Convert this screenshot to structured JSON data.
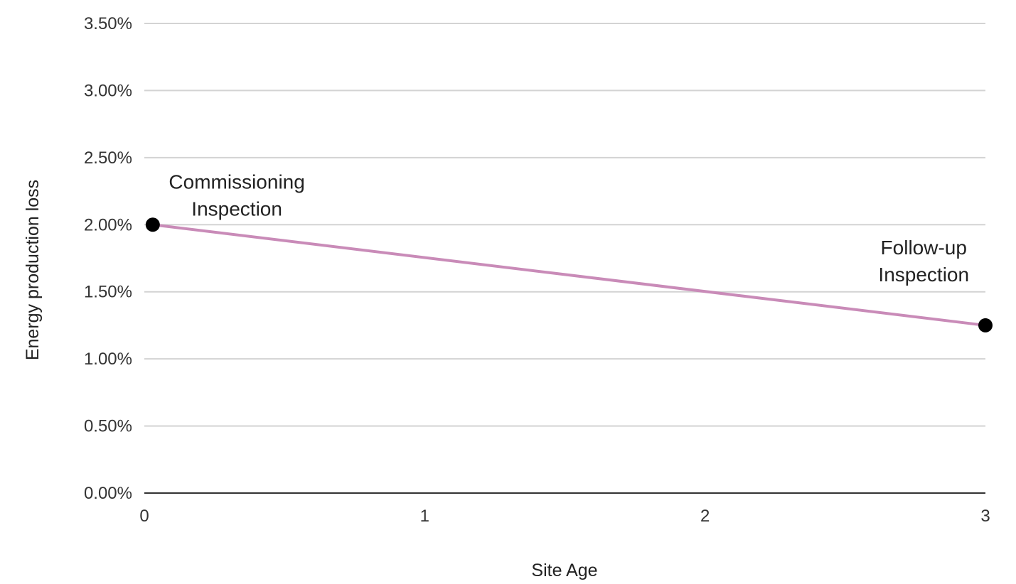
{
  "chart_data": {
    "type": "line",
    "xlabel": "Site Age",
    "ylabel": "Energy production loss",
    "xlim": [
      0,
      3
    ],
    "ylim": [
      0,
      0.035
    ],
    "x_ticks": [
      0,
      1,
      2,
      3
    ],
    "x_tick_labels": [
      "0",
      "1",
      "2",
      "3"
    ],
    "y_ticks": [
      0,
      0.005,
      0.01,
      0.015,
      0.02,
      0.025,
      0.03,
      0.035
    ],
    "y_tick_labels": [
      "0.00%",
      "0.50%",
      "1.00%",
      "1.50%",
      "2.00%",
      "2.50%",
      "3.00%",
      "3.50%"
    ],
    "grid": true,
    "line_color": "#c98bb8",
    "marker_color": "#000000",
    "series": [
      {
        "points": [
          {
            "x": 0.03,
            "y": 0.02
          },
          {
            "x": 3.0,
            "y": 0.0125
          }
        ]
      }
    ],
    "annotations": [
      {
        "lines": [
          "Commissioning",
          "Inspection"
        ],
        "x": 0.33,
        "y": 0.0227
      },
      {
        "lines": [
          "Follow-up",
          "Inspection"
        ],
        "x": 2.78,
        "y": 0.0178
      }
    ]
  }
}
